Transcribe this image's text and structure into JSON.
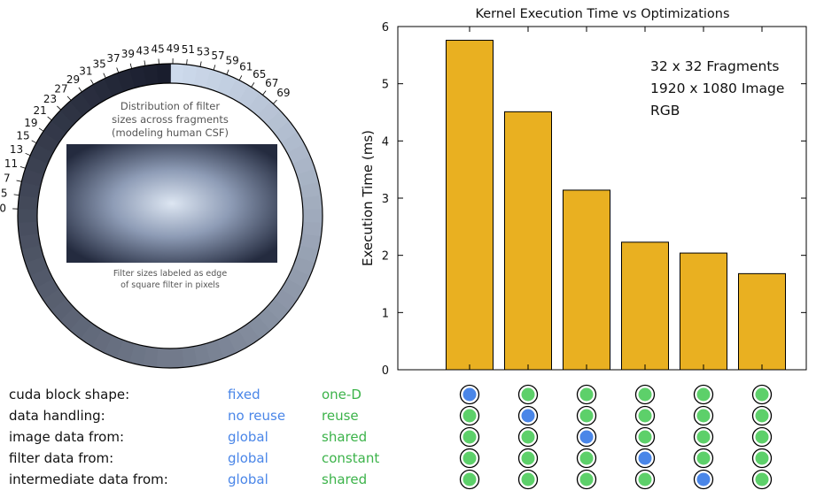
{
  "ring": {
    "caption_top": [
      "Distribution of filter",
      "sizes across fragments",
      "(modeling human CSF)"
    ],
    "caption_bottom": [
      "Filter sizes labeled as edge",
      "of square filter in pixels"
    ],
    "labels": [
      "0",
      "5",
      "7",
      "11",
      "13",
      "15",
      "19",
      "21",
      "23",
      "27",
      "29",
      "31",
      "35",
      "37",
      "39",
      "43",
      "45",
      "49",
      "51",
      "53",
      "57",
      "59",
      "61",
      "65",
      "67",
      "69"
    ]
  },
  "chart_data": {
    "type": "bar",
    "title": "Kernel Execution Time vs Optimizations",
    "ylabel": "Execution Time (ms)",
    "xlabel": "",
    "ylim": [
      0,
      6
    ],
    "yticks": [
      "0",
      "1",
      "2",
      "3",
      "4",
      "5",
      "6"
    ],
    "values": [
      5.76,
      4.51,
      3.14,
      2.23,
      2.04,
      1.68
    ],
    "bar_color": "#e9b021",
    "annotation": [
      "32 x 32 Fragments",
      "1920 x 1080 Image",
      "RGB"
    ]
  },
  "optimizations": {
    "rows": [
      {
        "label": "cuda block shape:",
        "a": "fixed",
        "b": "one-D"
      },
      {
        "label": "data handling:",
        "a": "no reuse",
        "b": "reuse"
      },
      {
        "label": "image data from:",
        "a": "global",
        "b": "shared"
      },
      {
        "label": "filter data from:",
        "a": "global",
        "b": "constant"
      },
      {
        "label": "intermediate data from:",
        "a": "global",
        "b": "shared"
      }
    ],
    "option_a_color": "#4a86e8",
    "option_b_color": "#3cb34a",
    "dot_a_color": "#4a86e8",
    "dot_b_color": "#5dd06a",
    "matrix": [
      [
        "a",
        "b",
        "b",
        "b",
        "b",
        "b"
      ],
      [
        "b",
        "a",
        "b",
        "b",
        "b",
        "b"
      ],
      [
        "b",
        "b",
        "a",
        "b",
        "b",
        "b"
      ],
      [
        "b",
        "b",
        "b",
        "a",
        "b",
        "b"
      ],
      [
        "b",
        "b",
        "b",
        "b",
        "a",
        "b"
      ]
    ]
  }
}
